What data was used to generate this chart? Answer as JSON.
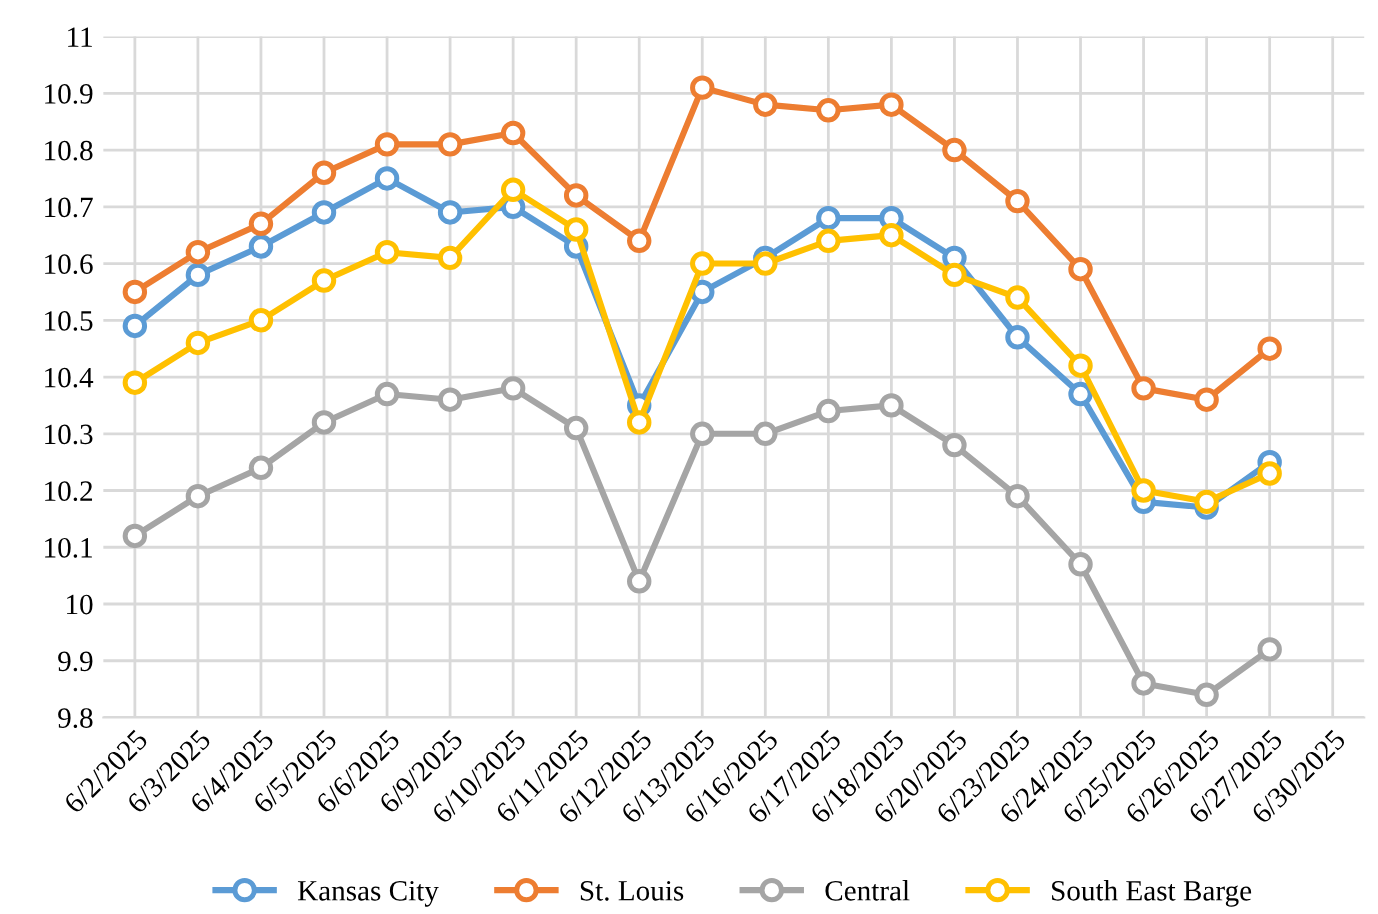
{
  "chart_data": {
    "type": "line",
    "categories": [
      "6/2/2025",
      "6/3/2025",
      "6/4/2025",
      "6/5/2025",
      "6/6/2025",
      "6/9/2025",
      "6/10/2025",
      "6/11/2025",
      "6/12/2025",
      "6/13/2025",
      "6/16/2025",
      "6/17/2025",
      "6/18/2025",
      "6/20/2025",
      "6/23/2025",
      "6/24/2025",
      "6/25/2025",
      "6/26/2025",
      "6/27/2025",
      "6/30/2025"
    ],
    "series": [
      {
        "name": "Kansas City",
        "color": "#5b9bd5",
        "values": [
          10.49,
          10.58,
          10.63,
          10.69,
          10.75,
          10.69,
          10.7,
          10.63,
          10.35,
          10.55,
          10.61,
          10.68,
          10.68,
          10.61,
          10.47,
          10.37,
          10.18,
          10.17,
          10.25,
          null
        ]
      },
      {
        "name": "St. Louis",
        "color": "#ed7d31",
        "values": [
          10.55,
          10.62,
          10.67,
          10.76,
          10.81,
          10.81,
          10.83,
          10.72,
          10.64,
          10.91,
          10.88,
          10.87,
          10.88,
          10.8,
          10.71,
          10.59,
          10.38,
          10.36,
          10.45,
          null
        ]
      },
      {
        "name": "Central",
        "color": "#a5a5a5",
        "values": [
          10.12,
          10.19,
          10.24,
          10.32,
          10.37,
          10.36,
          10.38,
          10.31,
          10.04,
          10.3,
          10.3,
          10.34,
          10.35,
          10.28,
          10.19,
          10.07,
          9.86,
          9.84,
          9.92,
          null
        ]
      },
      {
        "name": "South East Barge",
        "color": "#ffc000",
        "values": [
          10.39,
          10.46,
          10.5,
          10.57,
          10.62,
          10.61,
          10.73,
          10.66,
          10.32,
          10.6,
          10.6,
          10.64,
          10.65,
          10.58,
          10.54,
          10.42,
          10.2,
          10.18,
          10.23,
          null
        ]
      }
    ],
    "ylim": [
      9.8,
      11
    ],
    "yticks": [
      9.8,
      9.9,
      10,
      10.1,
      10.2,
      10.3,
      10.4,
      10.5,
      10.6,
      10.7,
      10.8,
      10.9,
      11
    ],
    "grid": true,
    "legend": "bottom",
    "marker": "circle",
    "line_style": "solid"
  }
}
